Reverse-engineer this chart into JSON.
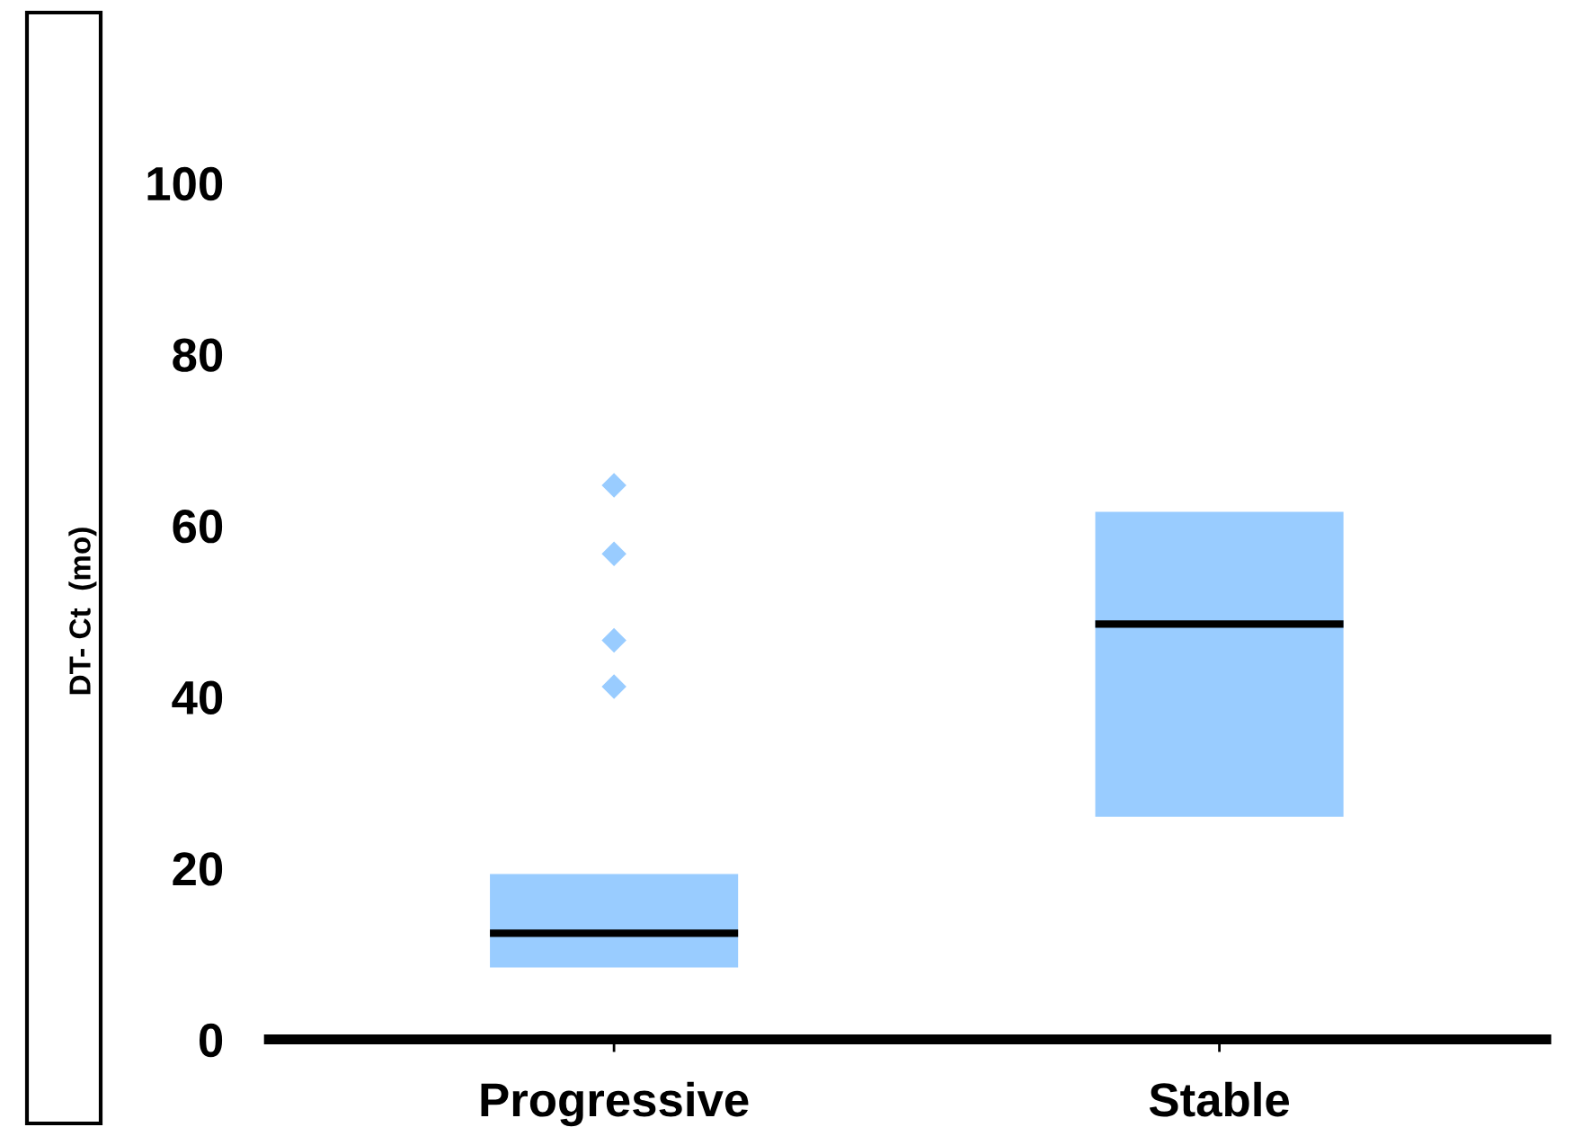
{
  "chart_data": {
    "type": "box",
    "ylabel": "DT- Ct  (mo)",
    "categories": [
      "Progressive",
      "Stable"
    ],
    "boxes": [
      {
        "q1": 8.4,
        "median": 12.4,
        "q3": 19.3,
        "outliers": [
          64.7,
          56.7,
          46.6,
          41.2
        ]
      },
      {
        "q1": 26.0,
        "median": 48.5,
        "q3": 61.6
      }
    ],
    "color": "#99ccff",
    "marker": "diamond",
    "ylim": [
      0,
      100
    ],
    "yticks": [
      0,
      20,
      40,
      60,
      80,
      100
    ],
    "grid": false,
    "legend": false
  }
}
